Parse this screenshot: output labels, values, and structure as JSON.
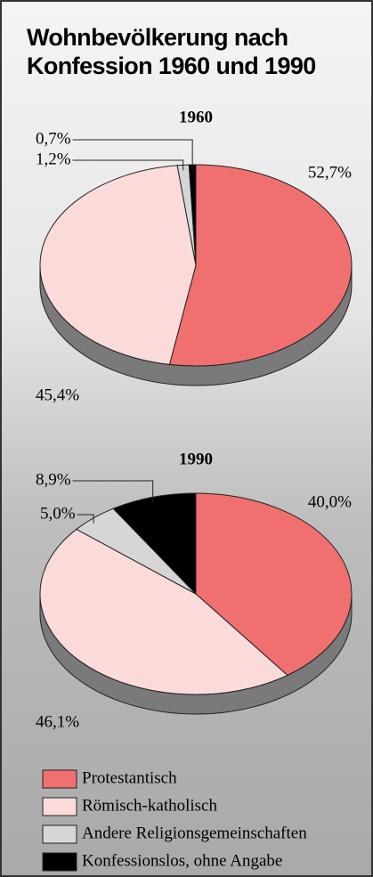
{
  "title": "Wohnbevölkerung nach Konfession 1960 und 1990",
  "chart_data": [
    {
      "type": "pie",
      "title": "1960",
      "categories": [
        "Protestantisch",
        "Römisch-katholisch",
        "Andere Religionsgemeinschaften",
        "Konfessionslos, ohne Angabe"
      ],
      "values": [
        52.7,
        45.4,
        1.2,
        0.7
      ],
      "value_labels": [
        "52,7%",
        "45,4%",
        "1,2%",
        "0,7%"
      ],
      "colors": [
        "#f07070",
        "#fbdada",
        "#d6d6d6",
        "#000000"
      ]
    },
    {
      "type": "pie",
      "title": "1990",
      "categories": [
        "Protestantisch",
        "Römisch-katholisch",
        "Andere Religionsgemeinschaften",
        "Konfessionslos, ohne Angabe"
      ],
      "values": [
        40.0,
        46.1,
        5.0,
        8.9
      ],
      "value_labels": [
        "40,0%",
        "46,1%",
        "5,0%",
        "8,9%"
      ],
      "colors": [
        "#f07070",
        "#fbdada",
        "#d6d6d6",
        "#000000"
      ]
    }
  ]
}
